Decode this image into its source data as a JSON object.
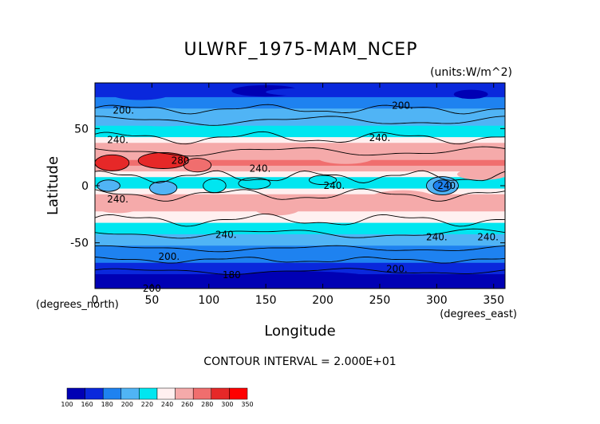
{
  "chart_data": {
    "type": "heatmap",
    "title": "ULWRF_1975-MAM_NCEP",
    "units_label": "(units:W/m^2)",
    "xlabel": "Longitude",
    "ylabel": "Latitude",
    "x_unit_label": "(degrees_east)",
    "y_unit_label": "(degrees_north)",
    "xlim": [
      0,
      360
    ],
    "ylim": [
      -90,
      90
    ],
    "x_ticks": [
      0,
      50,
      100,
      150,
      200,
      250,
      300,
      350
    ],
    "y_ticks": [
      -50,
      0,
      50
    ],
    "contour_interval_text": "CONTOUR INTERVAL = 2.000E+01",
    "contour_labels": [
      "200.",
      "200.",
      "240.",
      "240.",
      "280",
      "240.",
      "240.",
      "240.",
      "240.",
      "240.",
      "240.",
      "200.",
      "180",
      "200.",
      "200",
      "240."
    ],
    "colorbar": {
      "levels": [
        "100",
        "160",
        "180",
        "200",
        "220",
        "240",
        "260",
        "280",
        "300",
        "350"
      ],
      "colors": [
        "#0000b4",
        "#0a28dc",
        "#1e82f0",
        "#50b4f5",
        "#00e6f0",
        "#fff0f0",
        "#f5aaaa",
        "#f06e6e",
        "#e62828",
        "#ff0000"
      ]
    },
    "zonal_profile": {
      "lat": [
        90,
        85,
        80,
        75,
        70,
        65,
        60,
        55,
        50,
        45,
        40,
        35,
        30,
        25,
        20,
        15,
        10,
        5,
        0,
        -5,
        -10,
        -15,
        -20,
        -25,
        -30,
        -35,
        -40,
        -45,
        -50,
        -55,
        -60,
        -65,
        -70,
        -75,
        -80,
        -85,
        -90
      ],
      "value": [
        170,
        172,
        178,
        185,
        195,
        203,
        210,
        218,
        222,
        232,
        250,
        262,
        270,
        278,
        280,
        262,
        240,
        228,
        235,
        245,
        260,
        268,
        265,
        255,
        243,
        232,
        222,
        213,
        205,
        198,
        192,
        185,
        175,
        160,
        150,
        140,
        135
      ]
    }
  }
}
